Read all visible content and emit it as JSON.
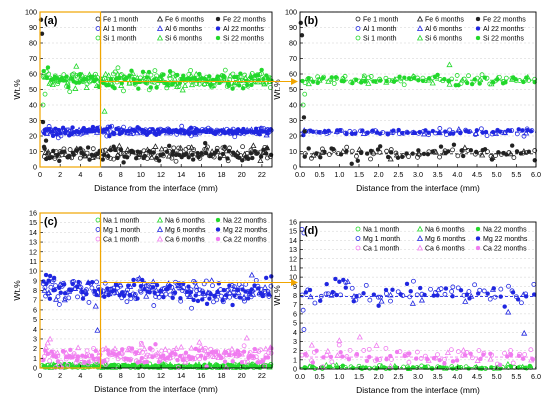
{
  "figure": {
    "connector_color": "#f0a500",
    "marker_legend": {
      "series_colors": {
        "Fe": "#222222",
        "Al": "#1f26e0",
        "Si": "#22d82b",
        "Na": "#22d82b",
        "Mg": "#1f26e0",
        "Ca": "#f07cf0"
      },
      "times": [
        "1 month",
        "6 months",
        "22 months"
      ]
    }
  },
  "chart_data": [
    {
      "panel_label": "(a)",
      "type": "scatter",
      "xlabel": "Distance from the interface (mm)",
      "ylabel": "Wt.%",
      "xlim": [
        0,
        23
      ],
      "ylim": [
        0,
        100
      ],
      "xticks": [
        "0",
        "2",
        "4",
        "6",
        "8",
        "10",
        "12",
        "14",
        "16",
        "18",
        "20",
        "22"
      ],
      "yticks": [
        "0",
        "10",
        "20",
        "30",
        "40",
        "50",
        "60",
        "70",
        "80",
        "90",
        "100"
      ],
      "grid": true,
      "zoom_box": {
        "x": [
          0,
          6
        ],
        "y": [
          0,
          100
        ]
      },
      "legend": [
        "Fe 1 month",
        "Fe 6 months",
        "Fe 22 months",
        "Al 1 month",
        "Al 6 months",
        "Al 22 months",
        "Si 1 month",
        "Si 6 months",
        "Si 22 months"
      ],
      "series": [
        {
          "name": "Fe 1 month",
          "element": "Fe",
          "time": 0,
          "mean": 9,
          "spread": 2.2,
          "start": 0.3,
          "end": 23,
          "n": 90
        },
        {
          "name": "Fe 6 months",
          "element": "Fe",
          "time": 1,
          "mean": 9,
          "spread": 2.2,
          "start": 0.3,
          "end": 23,
          "n": 45
        },
        {
          "name": "Fe 22 months",
          "element": "Fe",
          "time": 2,
          "mean": 8.5,
          "spread": 2.4,
          "start": 0.3,
          "end": 23,
          "n": 90
        },
        {
          "name": "Al 1 month",
          "element": "Al",
          "time": 0,
          "mean": 23,
          "spread": 1.2,
          "start": 0.3,
          "end": 23,
          "n": 120
        },
        {
          "name": "Al 6 months",
          "element": "Al",
          "time": 1,
          "mean": 22.5,
          "spread": 1.0,
          "start": 0.3,
          "end": 23,
          "n": 40
        },
        {
          "name": "Al 22 months",
          "element": "Al",
          "time": 2,
          "mean": 23,
          "spread": 1.2,
          "start": 0.3,
          "end": 23,
          "n": 120
        },
        {
          "name": "Si 1 month",
          "element": "Si",
          "time": 0,
          "mean": 56,
          "spread": 2.6,
          "start": 0.3,
          "end": 23,
          "n": 150
        },
        {
          "name": "Si 6 months",
          "element": "Si",
          "time": 1,
          "mean": 56,
          "spread": 2.6,
          "start": 0.3,
          "end": 23,
          "n": 60
        },
        {
          "name": "Si 22 months",
          "element": "Si",
          "time": 2,
          "mean": 56,
          "spread": 2.6,
          "start": 0.3,
          "end": 23,
          "n": 100
        }
      ],
      "outliers": [
        {
          "element": "Fe",
          "time": 2,
          "points": [
            [
              0.1,
              95
            ],
            [
              0.2,
              86
            ],
            [
              0.3,
              29
            ],
            [
              0.6,
              17
            ],
            [
              0.4,
              13
            ]
          ]
        },
        {
          "element": "Si",
          "time": 1,
          "points": [
            [
              3.6,
              65
            ],
            [
              6.4,
              36
            ]
          ]
        },
        {
          "element": "Si",
          "time": 0,
          "points": [
            [
              0.3,
              40
            ],
            [
              0.5,
              47
            ]
          ]
        }
      ]
    },
    {
      "panel_label": "(b)",
      "type": "scatter",
      "xlabel": "Distance from the interface (mm)",
      "ylabel": "Wt.%",
      "xlim": [
        0,
        6
      ],
      "ylim": [
        0,
        100
      ],
      "xticks": [
        "0.0",
        "0.5",
        "1.0",
        "1.5",
        "2.0",
        "2.5",
        "3.0",
        "3.5",
        "4.0",
        "4.5",
        "5.0",
        "5.5",
        "6.0"
      ],
      "yticks": [
        "0",
        "10",
        "20",
        "30",
        "40",
        "50",
        "60",
        "70",
        "80",
        "90",
        "100"
      ],
      "grid": true,
      "reference_lines": [
        {
          "y": 56,
          "color": "#22d82b"
        },
        {
          "y": 22.5,
          "color": "#1f26e0"
        },
        {
          "y": 8.5,
          "color": "#222222"
        }
      ],
      "legend": [
        "Fe 1 month",
        "Fe 6 months",
        "Fe 22 months",
        "Al 1 month",
        "Al 6 months",
        "Al 22 months",
        "Si 1 month",
        "Si 6 months",
        "Si 22 months"
      ],
      "series": [
        {
          "name": "Fe 1 month",
          "element": "Fe",
          "time": 0,
          "mean": 9,
          "spread": 2.2,
          "start": 0.05,
          "end": 6,
          "n": 40
        },
        {
          "name": "Fe 6 months",
          "element": "Fe",
          "time": 1,
          "mean": 9,
          "spread": 2.2,
          "start": 0.05,
          "end": 6,
          "n": 15
        },
        {
          "name": "Fe 22 months",
          "element": "Fe",
          "time": 2,
          "mean": 9.5,
          "spread": 2.6,
          "start": 0.05,
          "end": 6,
          "n": 45
        },
        {
          "name": "Al 1 month",
          "element": "Al",
          "time": 0,
          "mean": 22.5,
          "spread": 1.0,
          "start": 0.05,
          "end": 6,
          "n": 45
        },
        {
          "name": "Al 6 months",
          "element": "Al",
          "time": 1,
          "mean": 22.5,
          "spread": 1.0,
          "start": 0.05,
          "end": 6,
          "n": 14
        },
        {
          "name": "Al 22 months",
          "element": "Al",
          "time": 2,
          "mean": 22.5,
          "spread": 1.0,
          "start": 0.05,
          "end": 6,
          "n": 45
        },
        {
          "name": "Si 1 month",
          "element": "Si",
          "time": 0,
          "mean": 56,
          "spread": 1.6,
          "start": 0.05,
          "end": 6,
          "n": 55
        },
        {
          "name": "Si 6 months",
          "element": "Si",
          "time": 1,
          "mean": 56,
          "spread": 1.6,
          "start": 0.05,
          "end": 6,
          "n": 18
        },
        {
          "name": "Si 22 months",
          "element": "Si",
          "time": 2,
          "mean": 56,
          "spread": 1.6,
          "start": 0.05,
          "end": 6,
          "n": 45
        }
      ],
      "outliers": [
        {
          "element": "Fe",
          "time": 2,
          "points": [
            [
              0.02,
              93
            ],
            [
              0.05,
              85
            ],
            [
              0.1,
              32
            ],
            [
              0.12,
              23
            ]
          ]
        },
        {
          "element": "Si",
          "time": 1,
          "points": [
            [
              3.8,
              66
            ]
          ]
        },
        {
          "element": "Si",
          "time": 0,
          "points": [
            [
              0.08,
              40
            ],
            [
              0.12,
              47
            ]
          ]
        }
      ]
    },
    {
      "panel_label": "(c)",
      "type": "scatter",
      "xlabel": "Distance from the interface (mm)",
      "ylabel": "Wt.%",
      "xlim": [
        0,
        23
      ],
      "ylim": [
        0,
        16
      ],
      "xticks": [
        "0",
        "2",
        "4",
        "6",
        "8",
        "10",
        "12",
        "14",
        "16",
        "18",
        "20",
        "22"
      ],
      "yticks": [
        "0",
        "1",
        "2",
        "3",
        "4",
        "5",
        "6",
        "7",
        "8",
        "9",
        "10",
        "11",
        "12",
        "13",
        "14",
        "15",
        "16"
      ],
      "grid": true,
      "zoom_box": {
        "x": [
          0,
          6
        ],
        "y": [
          0,
          16
        ]
      },
      "legend": [
        "Na 1 month",
        "Na 6 months",
        "Na 22 months",
        "Mg 1 month",
        "Mg 6 months",
        "Mg 22 months",
        "Ca 1 month",
        "Ca 6 months",
        "Ca 22 months"
      ],
      "series": [
        {
          "name": "Na 1 month",
          "element": "Na",
          "time": 0,
          "mean": 0.15,
          "spread": 0.12,
          "start": 0.2,
          "end": 23,
          "n": 110
        },
        {
          "name": "Na 6 months",
          "element": "Na",
          "time": 1,
          "mean": 0.2,
          "spread": 0.15,
          "start": 0.2,
          "end": 23,
          "n": 40
        },
        {
          "name": "Na 22 months",
          "element": "Na",
          "time": 2,
          "mean": 0.15,
          "spread": 0.12,
          "start": 0.2,
          "end": 23,
          "n": 70
        },
        {
          "name": "Mg 1 month",
          "element": "Mg",
          "time": 0,
          "mean": 8,
          "spread": 0.55,
          "start": 0.2,
          "end": 23,
          "n": 140
        },
        {
          "name": "Mg 6 months",
          "element": "Mg",
          "time": 1,
          "mean": 8,
          "spread": 0.55,
          "start": 0.2,
          "end": 23,
          "n": 45
        },
        {
          "name": "Mg 22 months",
          "element": "Mg",
          "time": 2,
          "mean": 7.9,
          "spread": 0.6,
          "start": 0.2,
          "end": 23,
          "n": 90
        },
        {
          "name": "Ca 1 month",
          "element": "Ca",
          "time": 0,
          "mean": 1.2,
          "spread": 0.5,
          "start": 0.2,
          "end": 23,
          "n": 110
        },
        {
          "name": "Ca 6 months",
          "element": "Ca",
          "time": 1,
          "mean": 1.5,
          "spread": 0.6,
          "start": 0.2,
          "end": 23,
          "n": 45
        },
        {
          "name": "Ca 22 months",
          "element": "Ca",
          "time": 2,
          "mean": 1.2,
          "spread": 0.5,
          "start": 0.2,
          "end": 23,
          "n": 90
        }
      ],
      "outliers": [
        {
          "element": "Mg",
          "time": 2,
          "points": [
            [
              0.6,
              9.6
            ],
            [
              1.0,
              9.5
            ],
            [
              1.4,
              9.3
            ]
          ]
        },
        {
          "element": "Mg",
          "time": 1,
          "points": [
            [
              5.7,
              3.9
            ],
            [
              21.0,
              9.6
            ]
          ]
        },
        {
          "element": "Ca",
          "time": 1,
          "points": [
            [
              1.0,
              3.0
            ],
            [
              20.5,
              3.1
            ]
          ]
        }
      ]
    },
    {
      "panel_label": "(d)",
      "type": "scatter",
      "xlabel": "Distance from the interface (mm)",
      "ylabel": "Wt.%",
      "xlim": [
        0,
        6
      ],
      "ylim": [
        0,
        16
      ],
      "xticks": [
        "0.0",
        "0.5",
        "1.0",
        "1.5",
        "2.0",
        "2.5",
        "3.0",
        "3.5",
        "4.0",
        "4.5",
        "5.0",
        "5.5",
        "6.0"
      ],
      "yticks": [
        "0",
        "1",
        "2",
        "3",
        "4",
        "5",
        "6",
        "7",
        "8",
        "9",
        "10",
        "11",
        "12",
        "13",
        "14",
        "15",
        "16"
      ],
      "grid": true,
      "reference_lines": [
        {
          "y": 7.9,
          "color": "#1f26e0"
        },
        {
          "y": 1.3,
          "color": "#f07cf0"
        },
        {
          "y": 0.15,
          "color": "#22d82b"
        }
      ],
      "legend": [
        "Na 1 month",
        "Na 6 months",
        "Na 22 months",
        "Mg 1 month",
        "Mg 6 months",
        "Mg 22 months",
        "Ca 1 month",
        "Ca 6 months",
        "Ca 22 months"
      ],
      "series": [
        {
          "name": "Na 1 month",
          "element": "Na",
          "time": 0,
          "mean": 0.15,
          "spread": 0.12,
          "start": 0.05,
          "end": 6,
          "n": 40
        },
        {
          "name": "Na 6 months",
          "element": "Na",
          "time": 1,
          "mean": 0.2,
          "spread": 0.15,
          "start": 0.05,
          "end": 6,
          "n": 14
        },
        {
          "name": "Na 22 months",
          "element": "Na",
          "time": 2,
          "mean": 0.15,
          "spread": 0.12,
          "start": 0.05,
          "end": 6,
          "n": 30
        },
        {
          "name": "Mg 1 month",
          "element": "Mg",
          "time": 0,
          "mean": 8.1,
          "spread": 0.6,
          "start": 0.05,
          "end": 6,
          "n": 45
        },
        {
          "name": "Mg 6 months",
          "element": "Mg",
          "time": 1,
          "mean": 8,
          "spread": 0.6,
          "start": 0.05,
          "end": 6,
          "n": 14
        },
        {
          "name": "Mg 22 months",
          "element": "Mg",
          "time": 2,
          "mean": 8,
          "spread": 0.6,
          "start": 0.05,
          "end": 6,
          "n": 35
        },
        {
          "name": "Ca 1 month",
          "element": "Ca",
          "time": 0,
          "mean": 1.3,
          "spread": 0.5,
          "start": 0.05,
          "end": 6,
          "n": 40
        },
        {
          "name": "Ca 6 months",
          "element": "Ca",
          "time": 1,
          "mean": 1.6,
          "spread": 0.6,
          "start": 0.05,
          "end": 6,
          "n": 14
        },
        {
          "name": "Ca 22 months",
          "element": "Ca",
          "time": 2,
          "mean": 1.3,
          "spread": 0.5,
          "start": 0.05,
          "end": 6,
          "n": 35
        }
      ],
      "outliers": [
        {
          "element": "Mg",
          "time": 0,
          "points": [
            [
              0.05,
              15.2
            ],
            [
              0.1,
              14.8
            ],
            [
              0.08,
              6.4
            ],
            [
              0.1,
              4.3
            ]
          ]
        },
        {
          "element": "Mg",
          "time": 2,
          "points": [
            [
              0.9,
              9.8
            ],
            [
              1.1,
              9.7
            ],
            [
              1.0,
              9.5
            ]
          ]
        },
        {
          "element": "Mg",
          "time": 1,
          "points": [
            [
              5.7,
              3.9
            ]
          ]
        },
        {
          "element": "Ca",
          "time": 1,
          "points": [
            [
              0.3,
              2.6
            ],
            [
              1.0,
              3.1
            ]
          ]
        }
      ]
    }
  ]
}
